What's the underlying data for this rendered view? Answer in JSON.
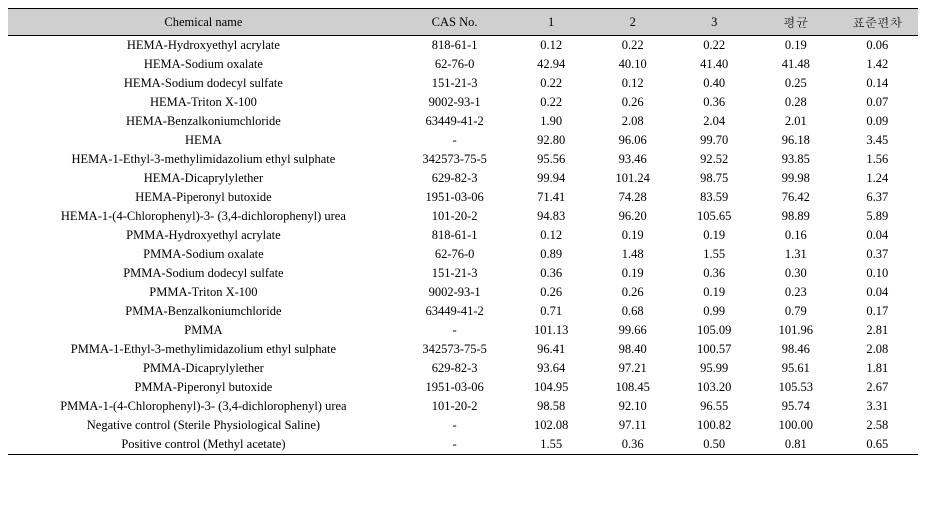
{
  "table": {
    "headers": {
      "name": "Chemical name",
      "cas": "CAS No.",
      "v1": "1",
      "v2": "2",
      "v3": "3",
      "mean": "평균",
      "sd": "표준편차"
    },
    "rows": [
      {
        "name": "HEMA-Hydroxyethyl acrylate",
        "cas": "818-61-1",
        "v1": "0.12",
        "v2": "0.22",
        "v3": "0.22",
        "mean": "0.19",
        "sd": "0.06"
      },
      {
        "name": "HEMA-Sodium oxalate",
        "cas": "62-76-0",
        "v1": "42.94",
        "v2": "40.10",
        "v3": "41.40",
        "mean": "41.48",
        "sd": "1.42"
      },
      {
        "name": "HEMA-Sodium dodecyl sulfate",
        "cas": "151-21-3",
        "v1": "0.22",
        "v2": "0.12",
        "v3": "0.40",
        "mean": "0.25",
        "sd": "0.14"
      },
      {
        "name": "HEMA-Triton X-100",
        "cas": "9002-93-1",
        "v1": "0.22",
        "v2": "0.26",
        "v3": "0.36",
        "mean": "0.28",
        "sd": "0.07"
      },
      {
        "name": "HEMA-Benzalkoniumchloride",
        "cas": "63449-41-2",
        "v1": "1.90",
        "v2": "2.08",
        "v3": "2.04",
        "mean": "2.01",
        "sd": "0.09"
      },
      {
        "name": "HEMA",
        "cas": "-",
        "v1": "92.80",
        "v2": "96.06",
        "v3": "99.70",
        "mean": "96.18",
        "sd": "3.45"
      },
      {
        "name": "HEMA-1-Ethyl-3-methylimidazolium ethyl sulphate",
        "cas": "342573-75-5",
        "v1": "95.56",
        "v2": "93.46",
        "v3": "92.52",
        "mean": "93.85",
        "sd": "1.56"
      },
      {
        "name": "HEMA-Dicaprylylether",
        "cas": "629-82-3",
        "v1": "99.94",
        "v2": "101.24",
        "v3": "98.75",
        "mean": "99.98",
        "sd": "1.24"
      },
      {
        "name": "HEMA-Piperonyl butoxide",
        "cas": "1951-03-06",
        "v1": "71.41",
        "v2": "74.28",
        "v3": "83.59",
        "mean": "76.42",
        "sd": "6.37"
      },
      {
        "name": "HEMA-1-(4-Chlorophenyl)-3- (3,4-dichlorophenyl) urea",
        "cas": "101-20-2",
        "v1": "94.83",
        "v2": "96.20",
        "v3": "105.65",
        "mean": "98.89",
        "sd": "5.89"
      },
      {
        "name": "PMMA-Hydroxyethyl acrylate",
        "cas": "818-61-1",
        "v1": "0.12",
        "v2": "0.19",
        "v3": "0.19",
        "mean": "0.16",
        "sd": "0.04"
      },
      {
        "name": "PMMA-Sodium oxalate",
        "cas": "62-76-0",
        "v1": "0.89",
        "v2": "1.48",
        "v3": "1.55",
        "mean": "1.31",
        "sd": "0.37"
      },
      {
        "name": "PMMA-Sodium dodecyl sulfate",
        "cas": "151-21-3",
        "v1": "0.36",
        "v2": "0.19",
        "v3": "0.36",
        "mean": "0.30",
        "sd": "0.10"
      },
      {
        "name": "PMMA-Triton X-100",
        "cas": "9002-93-1",
        "v1": "0.26",
        "v2": "0.26",
        "v3": "0.19",
        "mean": "0.23",
        "sd": "0.04"
      },
      {
        "name": "PMMA-Benzalkoniumchloride",
        "cas": "63449-41-2",
        "v1": "0.71",
        "v2": "0.68",
        "v3": "0.99",
        "mean": "0.79",
        "sd": "0.17"
      },
      {
        "name": "PMMA",
        "cas": "-",
        "v1": "101.13",
        "v2": "99.66",
        "v3": "105.09",
        "mean": "101.96",
        "sd": "2.81"
      },
      {
        "name": "PMMA-1-Ethyl-3-methylimidazolium ethyl sulphate",
        "cas": "342573-75-5",
        "v1": "96.41",
        "v2": "98.40",
        "v3": "100.57",
        "mean": "98.46",
        "sd": "2.08"
      },
      {
        "name": "PMMA-Dicaprylylether",
        "cas": "629-82-3",
        "v1": "93.64",
        "v2": "97.21",
        "v3": "95.99",
        "mean": "95.61",
        "sd": "1.81"
      },
      {
        "name": "PMMA-Piperonyl butoxide",
        "cas": "1951-03-06",
        "v1": "104.95",
        "v2": "108.45",
        "v3": "103.20",
        "mean": "105.53",
        "sd": "2.67"
      },
      {
        "name": "PMMA-1-(4-Chlorophenyl)-3- (3,4-dichlorophenyl) urea",
        "cas": "101-20-2",
        "v1": "98.58",
        "v2": "92.10",
        "v3": "96.55",
        "mean": "95.74",
        "sd": "3.31"
      },
      {
        "name": "Negative control (Sterile Physiological Saline)",
        "cas": "-",
        "v1": "102.08",
        "v2": "97.11",
        "v3": "100.82",
        "mean": "100.00",
        "sd": "2.58"
      },
      {
        "name": "Positive control (Methyl acetate)",
        "cas": "-",
        "v1": "1.55",
        "v2": "0.36",
        "v3": "0.50",
        "mean": "0.81",
        "sd": "0.65"
      }
    ]
  }
}
